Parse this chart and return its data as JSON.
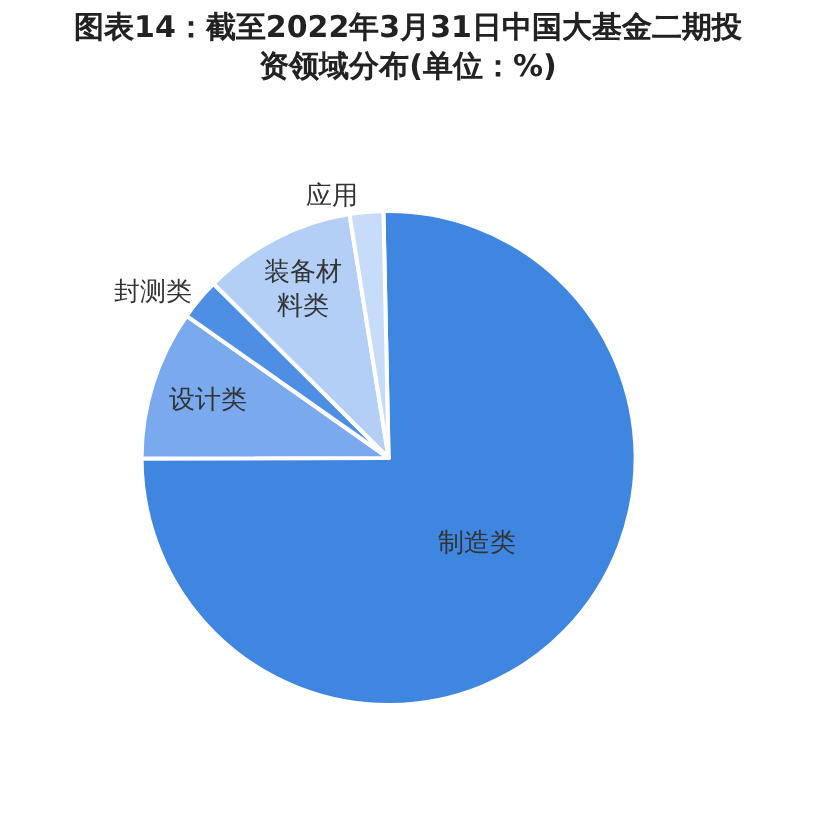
{
  "chart_data": {
    "type": "pie",
    "title": "图表14：截至2022年3月31日中国大基金二期投资领域分布(单位：%)",
    "categories": [
      "制造类",
      "设计类",
      "封测类",
      "装备材料类",
      "应用"
    ],
    "values": [
      75.3,
      9.8,
      2.7,
      10.0,
      2.2
    ],
    "colors": [
      "#3f86e0",
      "#7aa9ee",
      "#4e8fe6",
      "#b3cff5",
      "#c6dcf8"
    ],
    "legend": false
  }
}
